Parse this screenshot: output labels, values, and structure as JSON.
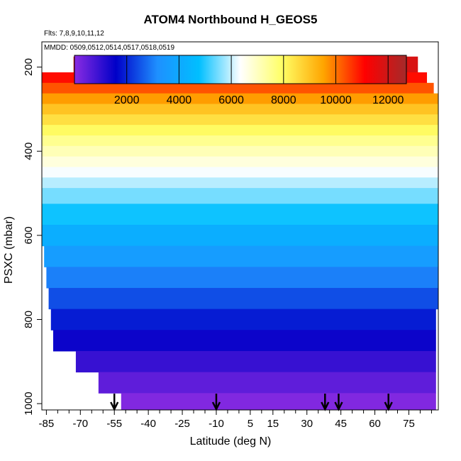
{
  "chart_data": {
    "type": "heatmap",
    "title": "ATOM4 Northbound H_GEOS5",
    "subtitle_flights": "Flts: 7,8,9,10,11,12",
    "subtitle_dates": "MMDD: 0509,0512,0514,0517,0518,0519",
    "xlabel": "Latitude (deg N)",
    "ylabel": "PSXC (mbar)",
    "xlim": [
      -87,
      88
    ],
    "ylim": [
      1015,
      140
    ],
    "x_ticks": [
      -85,
      -70,
      -55,
      -40,
      -25,
      -10,
      5,
      15,
      30,
      45,
      60,
      75
    ],
    "x_tick_labels": [
      "-85",
      "-70",
      "-55",
      "-40",
      "-25",
      "-10",
      "5",
      "15",
      "30",
      "45",
      "60",
      "75"
    ],
    "y_ticks": [
      200,
      400,
      600,
      800,
      1000
    ],
    "y_tick_labels": [
      "200",
      "400",
      "600",
      "800",
      "1000"
    ],
    "colorbar": {
      "range": [
        0,
        12700
      ],
      "ticks": [
        2000,
        4000,
        6000,
        8000,
        10000,
        12000
      ],
      "tick_labels": [
        "2000",
        "4000",
        "6000",
        "8000",
        "10000",
        "12000"
      ],
      "colors": [
        "#8a2be2",
        "#0000c8",
        "#1e90ff",
        "#00bfff",
        "#ffffff",
        "#ffff66",
        "#ffa500",
        "#ff0000",
        "#a52a2a"
      ],
      "position": "top"
    },
    "z_description": "Geopotential height (m) vs latitude and pressure",
    "pressure_levels": [
      {
        "p": 200,
        "h": 11800,
        "lat_min": -73,
        "lat_max": 79
      },
      {
        "p": 225,
        "h": 11000,
        "lat_min": -87,
        "lat_max": 83
      },
      {
        "p": 250,
        "h": 10300,
        "lat_min": -87,
        "lat_max": 86
      },
      {
        "p": 275,
        "h": 9600,
        "lat_min": -87,
        "lat_max": 88
      },
      {
        "p": 300,
        "h": 9000,
        "lat_min": -87,
        "lat_max": 88
      },
      {
        "p": 325,
        "h": 8500,
        "lat_min": -87,
        "lat_max": 88
      },
      {
        "p": 350,
        "h": 8000,
        "lat_min": -87,
        "lat_max": 88
      },
      {
        "p": 375,
        "h": 7500,
        "lat_min": -87,
        "lat_max": 88
      },
      {
        "p": 400,
        "h": 7100,
        "lat_min": -87,
        "lat_max": 88
      },
      {
        "p": 425,
        "h": 6700,
        "lat_min": -87,
        "lat_max": 88
      },
      {
        "p": 450,
        "h": 6300,
        "lat_min": -87,
        "lat_max": 88
      },
      {
        "p": 475,
        "h": 5900,
        "lat_min": -87,
        "lat_max": 88
      },
      {
        "p": 500,
        "h": 5500,
        "lat_min": -87,
        "lat_max": 88
      },
      {
        "p": 550,
        "h": 4850,
        "lat_min": -87,
        "lat_max": 88
      },
      {
        "p": 600,
        "h": 4200,
        "lat_min": -87,
        "lat_max": 88
      },
      {
        "p": 650,
        "h": 3600,
        "lat_min": -86,
        "lat_max": 88
      },
      {
        "p": 700,
        "h": 3000,
        "lat_min": -85,
        "lat_max": 88
      },
      {
        "p": 750,
        "h": 2450,
        "lat_min": -84,
        "lat_max": 88
      },
      {
        "p": 800,
        "h": 1900,
        "lat_min": -83,
        "lat_max": 87
      },
      {
        "p": 850,
        "h": 1450,
        "lat_min": -82,
        "lat_max": 87
      },
      {
        "p": 900,
        "h": 950,
        "lat_min": -72,
        "lat_max": 87
      },
      {
        "p": 950,
        "h": 500,
        "lat_min": -62,
        "lat_max": 87
      },
      {
        "p": 1000,
        "h": 100,
        "lat_min": -52,
        "lat_max": 87
      }
    ],
    "arrows_lat": [
      -55,
      -10,
      38,
      44,
      66
    ],
    "grid": false
  }
}
